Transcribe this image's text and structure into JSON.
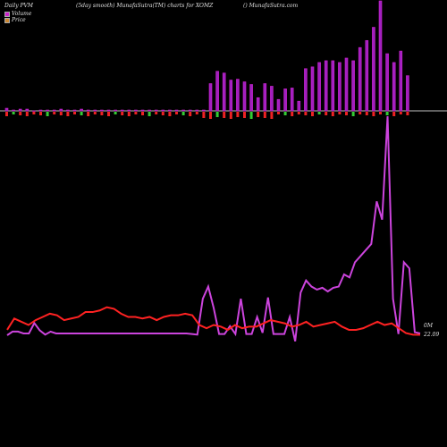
{
  "header": {
    "left": "Daily PVM",
    "middle": "(5day smooth) MunafaSutra(TM) charts for XOMZ",
    "right": "() MunafaSutra.com"
  },
  "legend": {
    "volume": "Volume",
    "price": "Price"
  },
  "labels": {
    "zero_volume": "0M",
    "last_price": "22.09"
  },
  "colors": {
    "up_bar": "#cc22cc",
    "up_bar_fill": "#a020c0",
    "down_bar": "#ee2222",
    "neutral_bar": "#33cc33",
    "volume_line": "#cc44dd",
    "price_line": "#ff2222",
    "baseline": "#ffffff"
  },
  "chart_data": {
    "type": "bar+line",
    "title": "(5day smooth) MunafaSutra(TM) charts for XOMZ",
    "series": [
      {
        "name": "Volume",
        "kind": "bar",
        "up_values": [
          3,
          1,
          2,
          2,
          0,
          1,
          1,
          1,
          2,
          1,
          1,
          2,
          1,
          1,
          1,
          1,
          1,
          1,
          1,
          1,
          1,
          1,
          1,
          1,
          1,
          1,
          1,
          1,
          1,
          1,
          31,
          45,
          43,
          35,
          36,
          33,
          30,
          15,
          31,
          28,
          13,
          25,
          26,
          11,
          48,
          50,
          55,
          57,
          57,
          55,
          60,
          57,
          72,
          80,
          95,
          125,
          65,
          55,
          68,
          40
        ]
      },
      {
        "name": "Price",
        "kind": "line",
        "values": [
          22.4,
          23.1,
          22.9,
          22.7,
          23.0,
          23.2,
          23.4,
          23.3,
          23.0,
          23.1,
          23.2,
          23.5,
          23.5,
          23.6,
          23.8,
          23.7,
          23.4,
          23.2,
          23.2,
          23.1,
          23.2,
          23.0,
          23.2,
          23.3,
          23.3,
          23.4,
          23.3,
          22.7,
          22.5,
          22.7,
          22.6,
          22.4,
          22.7,
          22.5,
          22.6,
          22.6,
          22.8,
          23.0,
          22.9,
          22.8,
          22.6,
          22.7,
          22.9,
          22.6,
          22.7,
          22.8,
          22.9,
          22.6,
          22.4,
          22.4,
          22.5,
          22.7,
          22.9,
          22.7,
          22.8,
          22.5,
          22.2,
          22.1,
          22.09
        ]
      }
    ],
    "volume_line": [
      0,
      6,
      6,
      3,
      3,
      20,
      8,
      1,
      6,
      3,
      3,
      3,
      3,
      3,
      3,
      3,
      3,
      3,
      3,
      3,
      3,
      3,
      3,
      3,
      3,
      3,
      3,
      3,
      3,
      3,
      3,
      3,
      3,
      3,
      2,
      1,
      60,
      80,
      45,
      2,
      2,
      15,
      2,
      60,
      2,
      2,
      30,
      4,
      62,
      2,
      2,
      2,
      30,
      -10,
      70,
      90,
      80,
      75,
      78,
      72,
      78,
      80,
      100,
      95,
      120,
      130,
      140,
      150,
      220,
      190,
      360,
      60,
      2,
      120,
      110,
      5,
      3
    ]
  }
}
